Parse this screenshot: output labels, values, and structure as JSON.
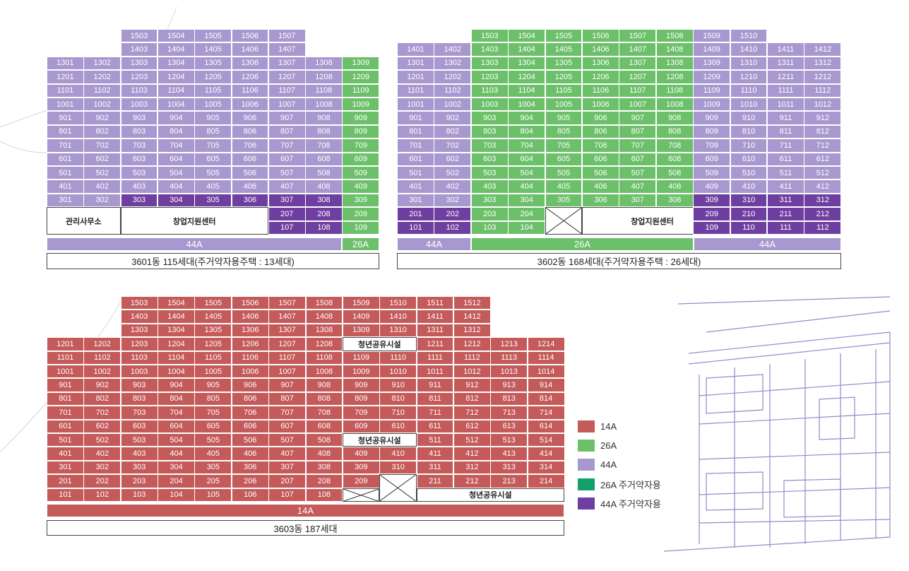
{
  "colors": {
    "p": "#a898d0",
    "g": "#6cc06a",
    "d": "#6e3fa0",
    "r": "#c45a5a",
    "green_special": "#12a06a",
    "purple_special": "#6e3fa0"
  },
  "building_3601": {
    "caption": "3601동 115세대(주거약자용주택 : 13세대)",
    "type_bars": [
      "44A",
      "26A"
    ],
    "office_label": "관리사무소",
    "startup_label": "창업지원센터"
  },
  "building_3602": {
    "caption": "3602동 168세대(주거약자용주택 : 26세대)",
    "type_bars": [
      "44A",
      "26A",
      "44A"
    ],
    "startup_label": "창업지원센터"
  },
  "building_3603": {
    "caption": "3603동 187세대",
    "type_bars": [
      "14A"
    ],
    "shared_label": "청년공유시설"
  },
  "legend": [
    {
      "label": "14A",
      "color": "#c45a5a"
    },
    {
      "label": "26A",
      "color": "#6cc06a"
    },
    {
      "label": "44A",
      "color": "#a898d0"
    },
    {
      "label": "26A 주거약자용",
      "color": "#12a06a"
    },
    {
      "label": "44A 주거약자용",
      "color": "#6e3fa0"
    }
  ]
}
